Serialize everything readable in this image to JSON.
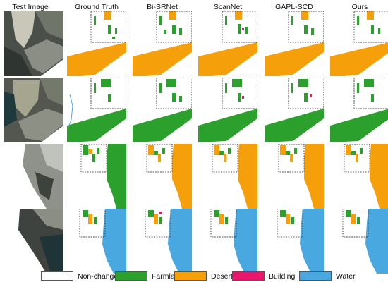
{
  "columns": [
    "Test Image",
    "Ground Truth",
    "Bi-SRNet",
    "ScanNet",
    "GAPL-SCD",
    "Ours"
  ],
  "legend": [
    {
      "label": "Non-change",
      "color": "#ffffff"
    },
    {
      "label": "Farmland",
      "color": "#2ca02c"
    },
    {
      "label": "Desert",
      "color": "#f5a00a"
    },
    {
      "label": "Building",
      "color": "#e8176b"
    },
    {
      "label": "Water",
      "color": "#4aa8e0"
    }
  ],
  "colors": {
    "farmland": "#2ca02c",
    "desert": "#f5a00a",
    "building": "#e8176b",
    "water": "#4aa8e0",
    "dash": "#222222"
  }
}
